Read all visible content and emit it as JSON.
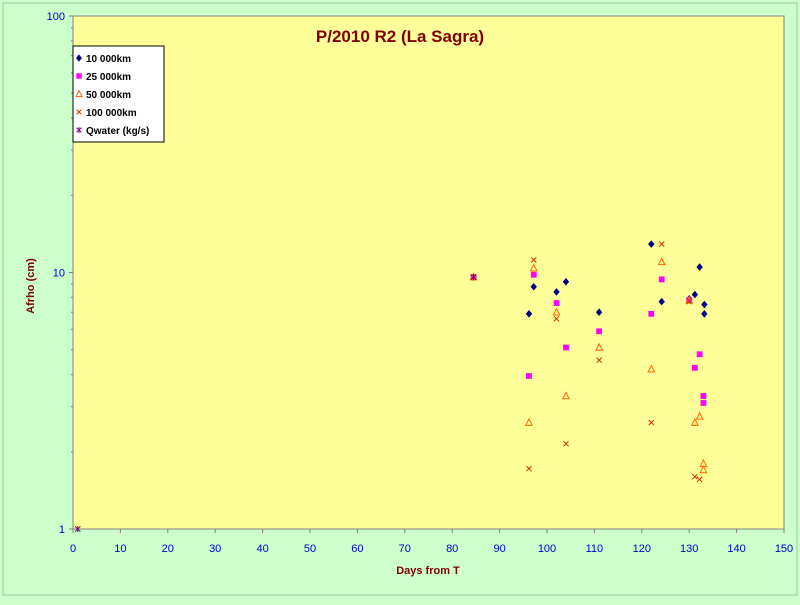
{
  "chart_data": {
    "type": "scatter",
    "title": "P/2010 R2 (La Sagra)",
    "xlabel": "Days from T",
    "ylabel": "Afrho (cm)",
    "xlim": [
      0,
      150
    ],
    "ylim": [
      1,
      100
    ],
    "yscale": "log",
    "x_ticks": [
      "0",
      "10",
      "20",
      "30",
      "40",
      "50",
      "60",
      "70",
      "80",
      "90",
      "100",
      "110",
      "120",
      "130",
      "140",
      "150"
    ],
    "y_ticks": [
      "1",
      "10",
      "100"
    ],
    "grid": false,
    "legend_position": "top-left",
    "colors": {
      "plot_background": "#ffff99",
      "outer_background": "#ccffcc",
      "title": "#800000",
      "tick_labels": "#0000cc"
    },
    "series": [
      {
        "name": "10 000km",
        "marker": "diamond",
        "color": "#000080",
        "points": [
          [
            84.5,
            9.6
          ],
          [
            96.2,
            6.9
          ],
          [
            97.2,
            8.8
          ],
          [
            102.0,
            8.4
          ],
          [
            104.0,
            9.2
          ],
          [
            111.0,
            7.0
          ],
          [
            122.0,
            12.9
          ],
          [
            124.2,
            7.7
          ],
          [
            130.0,
            7.9
          ],
          [
            131.2,
            8.2
          ],
          [
            132.2,
            10.5
          ],
          [
            133.2,
            7.5
          ],
          [
            133.2,
            6.9
          ]
        ]
      },
      {
        "name": "25 000km",
        "marker": "square",
        "color": "#ff00ff",
        "points": [
          [
            84.5,
            9.6
          ],
          [
            96.2,
            3.95
          ],
          [
            97.2,
            9.8
          ],
          [
            102.0,
            7.6
          ],
          [
            104.0,
            5.1
          ],
          [
            111.0,
            5.9
          ],
          [
            122.0,
            6.9
          ],
          [
            124.2,
            9.4
          ],
          [
            130.0,
            7.8
          ],
          [
            131.2,
            4.25
          ],
          [
            132.2,
            4.8
          ],
          [
            133.0,
            3.3
          ],
          [
            133.0,
            3.1
          ]
        ]
      },
      {
        "name": "50 000km",
        "marker": "triangle",
        "color": "#ff6600",
        "points": [
          [
            84.5,
            9.6
          ],
          [
            96.2,
            2.6
          ],
          [
            97.2,
            10.4
          ],
          [
            102.0,
            7.0
          ],
          [
            104.0,
            3.3
          ],
          [
            111.0,
            5.1
          ],
          [
            122.0,
            4.2
          ],
          [
            124.2,
            11.0
          ],
          [
            130.0,
            7.8
          ],
          [
            131.2,
            2.6
          ],
          [
            132.2,
            2.75
          ],
          [
            133.0,
            1.8
          ],
          [
            133.0,
            1.7
          ]
        ]
      },
      {
        "name": "100 000km",
        "marker": "x",
        "color": "#cc3300",
        "points": [
          [
            84.5,
            9.6
          ],
          [
            96.2,
            1.72
          ],
          [
            97.2,
            11.2
          ],
          [
            102.0,
            6.6
          ],
          [
            104.0,
            2.15
          ],
          [
            111.0,
            4.55
          ],
          [
            122.0,
            2.6
          ],
          [
            124.2,
            12.9
          ],
          [
            130.0,
            7.7
          ],
          [
            131.2,
            1.6
          ],
          [
            132.2,
            1.56
          ]
        ]
      },
      {
        "name": "Qwater (kg/s)",
        "marker": "star",
        "color": "#800080",
        "points": [
          [
            1.0,
            1.0
          ],
          [
            84.5,
            9.6
          ]
        ]
      }
    ]
  }
}
